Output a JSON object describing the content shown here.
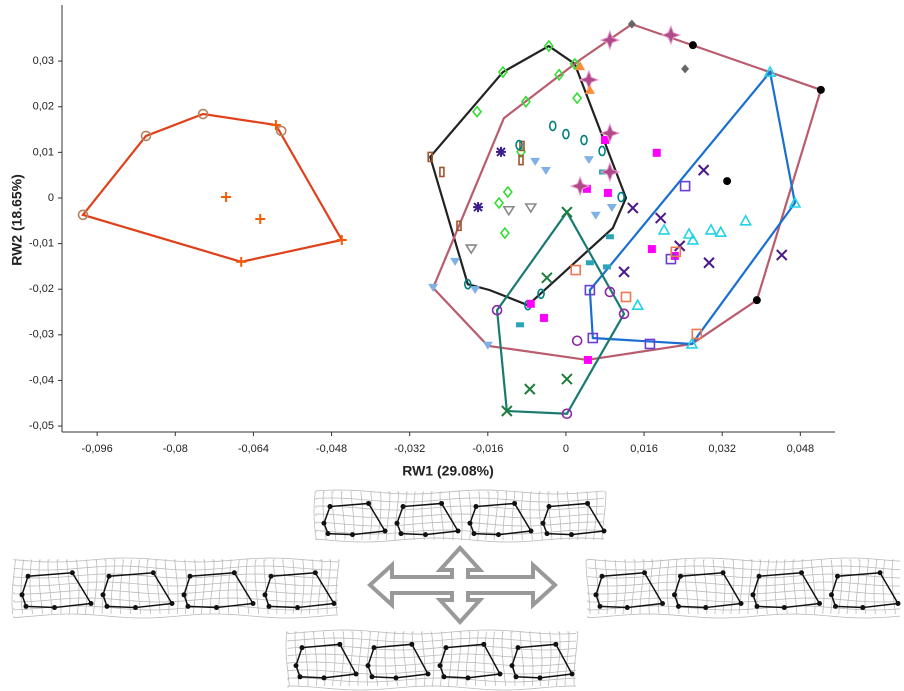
{
  "chart_data": {
    "type": "scatter",
    "x_label": "RW1 (29.08%)",
    "y_label": "RW2 (18.65%)",
    "xlim": [
      -0.1032,
      0.0551
    ],
    "ylim": [
      -0.0513,
      0.0423
    ],
    "xticks": [
      {
        "value": -0.096,
        "label": "-0,096"
      },
      {
        "value": -0.08,
        "label": "-0,08"
      },
      {
        "value": -0.064,
        "label": "-0,064"
      },
      {
        "value": -0.048,
        "label": "-0,048"
      },
      {
        "value": -0.032,
        "label": "-0,032"
      },
      {
        "value": -0.016,
        "label": "-0,016"
      },
      0,
      {
        "value": 0.016,
        "label": "0,016"
      },
      {
        "value": 0.032,
        "label": "0,032"
      },
      {
        "value": 0.048,
        "label": "0,048"
      }
    ],
    "yticks": [
      {
        "value": 0.03,
        "label": "0,03"
      },
      {
        "value": 0.02,
        "label": "0,02"
      },
      {
        "value": 0.01,
        "label": "0,01"
      },
      0,
      {
        "value": -0.01,
        "label": "-0,01"
      },
      {
        "value": -0.02,
        "label": "-0,02"
      },
      {
        "value": -0.03,
        "label": "-0,03"
      },
      {
        "value": -0.04,
        "label": "-0,04"
      },
      {
        "value": -0.05,
        "label": "-0,05"
      }
    ],
    "hulls": [
      {
        "color": "#e0401a",
        "x": [
          -0.0989,
          -0.086,
          -0.0743,
          -0.0594,
          -0.0459,
          -0.0665
        ],
        "y": [
          -0.0037,
          0.0136,
          0.0184,
          0.016,
          -0.0092,
          -0.014
        ]
      },
      {
        "color": "#222222",
        "x": [
          -0.0278,
          -0.0129,
          -0.0035,
          0.0018,
          0.0123,
          0.0096,
          -0.0078,
          -0.0156,
          -0.0201
        ],
        "y": [
          0.009,
          0.0276,
          0.0333,
          0.0294,
          0,
          -0.0066,
          -0.0235,
          -0.0202,
          -0.0189
        ]
      },
      {
        "color": "#b85c6e",
        "x": [
          -0.0272,
          -0.016,
          0.0043,
          0.0258,
          0.0391,
          0.0522,
          0.0135,
          0.0029,
          -0.0127
        ],
        "y": [
          -0.0197,
          -0.0324,
          -0.0355,
          -0.032,
          -0.0224,
          0.0237,
          0.0381,
          0.0303,
          0.0175
        ]
      },
      {
        "color": "#1a6fd0",
        "x": [
          0.0049,
          0.0418,
          0.0469,
          0.0258,
          0.0055
        ],
        "y": [
          -0.0202,
          0.0276,
          -0.0011,
          -0.032,
          -0.0307
        ]
      },
      {
        "color": "#1a7a70",
        "x": [
          -0.0141,
          0.0002,
          0.0119,
          0.0002,
          -0.0121
        ],
        "y": [
          -0.0246,
          -0.0031,
          -0.0254,
          -0.0473,
          -0.0467
        ]
      }
    ],
    "series": [
      {
        "marker": "circle-open",
        "color": "#b5835f",
        "x": [
          -0.0989,
          -0.086,
          -0.0743,
          -0.0583
        ],
        "y": [
          -0.0037,
          0.0136,
          0.0184,
          0.0147
        ]
      },
      {
        "marker": "plus",
        "color": "#f25c05",
        "x": [
          -0.0594,
          -0.0459,
          -0.0665,
          -0.0696,
          -0.0626
        ],
        "y": [
          0.016,
          -0.0092,
          -0.014,
          0.0002,
          -0.0046
        ]
      },
      {
        "marker": "diamond-open",
        "color": "#33dd33",
        "x": [
          -0.0129,
          -0.0035,
          0.0018,
          -0.0014,
          -0.0082,
          0.0023,
          -0.0182,
          -0.0119,
          -0.0137,
          -0.0125,
          -0.0092
        ],
        "y": [
          0.0276,
          0.0333,
          0.0294,
          0.027,
          0.0211,
          0.0219,
          0.0189,
          0.0013,
          -0.0011,
          -0.0077,
          0.0101
        ]
      },
      {
        "marker": "rect-open",
        "color": "#a0522d",
        "x": [
          -0.0278,
          -0.0254,
          -0.0219,
          -0.0092,
          -0.009
        ],
        "y": [
          0.009,
          0.0057,
          -0.0061,
          0.0083,
          0.0114
        ]
      },
      {
        "marker": "tri-down",
        "color": "#7fb0e6",
        "x": [
          -0.0272,
          -0.0186,
          -0.016,
          -0.0063,
          0.0047,
          0.0061,
          0.0094,
          -0.0041,
          -0.0227
        ],
        "y": [
          -0.0197,
          -0.0202,
          -0.0324,
          0.0079,
          0.0083,
          -0.0039,
          -0.0022,
          0.0059,
          -0.014
        ]
      },
      {
        "marker": "tri-down-open",
        "color": "#888888",
        "x": [
          -0.0117,
          -0.0072,
          -0.0194
        ],
        "y": [
          -0.0028,
          -0.0022,
          -0.0112
        ]
      },
      {
        "marker": "oval-open",
        "color": "#008080",
        "x": [
          -0.0201,
          -0.0096,
          -0.0027,
          0,
          0.0037,
          0.0074,
          0.0113,
          -0.0051,
          -0.0078
        ],
        "y": [
          -0.0189,
          0.0116,
          0.0158,
          0.014,
          0.0127,
          0.0103,
          0.0002,
          -0.021,
          -0.0235
        ]
      },
      {
        "marker": "asterisk",
        "color": "#3b1f8c",
        "x": [
          -0.0133,
          -0.018
        ],
        "y": [
          0.0101,
          -0.002
        ]
      },
      {
        "marker": "circle-open",
        "color": "#8e24aa",
        "x": [
          -0.0141,
          0.009,
          0.0002,
          0.0023,
          0.0119
        ],
        "y": [
          -0.0246,
          -0.0206,
          -0.0473,
          -0.0313,
          -0.0254
        ]
      },
      {
        "marker": "rect-small",
        "color": "#2aa5b5",
        "x": [
          -0.0094,
          0.0076,
          0.009,
          0.0084,
          0.0049
        ],
        "y": [
          -0.0278,
          0.0057,
          -0.0085,
          -0.0151,
          -0.0142
        ]
      },
      {
        "marker": "x",
        "color": "#1e7d3c",
        "x": [
          0.0002,
          -0.0039,
          -0.0074,
          0.0002,
          -0.0121
        ],
        "y": [
          -0.0031,
          -0.0175,
          -0.0419,
          -0.0397,
          -0.0467
        ]
      },
      {
        "marker": "square",
        "color": "#ff00ff",
        "x": [
          0.0186,
          0.0043,
          0.0086,
          0.008,
          -0.0072,
          -0.0045,
          0.0045,
          0.0176,
          0.0223
        ],
        "y": [
          0.0099,
          0.002,
          0.0011,
          0.0127,
          -0.0232,
          -0.0263,
          -0.0355,
          -0.0112,
          -0.0127
        ]
      },
      {
        "marker": "square-open",
        "color": "#6a3ed6",
        "x": [
          0.0244,
          0.0049,
          0.0055,
          0.0172,
          0.0215
        ],
        "y": [
          0.0026,
          -0.0202,
          -0.0307,
          -0.032,
          -0.0134
        ]
      },
      {
        "marker": "x",
        "color": "#4a1a8a",
        "x": [
          0.0282,
          0.0137,
          0.0194,
          0.0233,
          0.0293,
          0.0119,
          0.0442
        ],
        "y": [
          0.0061,
          -0.0022,
          -0.0044,
          -0.0105,
          -0.0142,
          -0.0162,
          -0.0125
        ]
      },
      {
        "marker": "tri-open",
        "color": "#22d3e6",
        "x": [
          0.0201,
          0.0252,
          0.026,
          0.0297,
          0.0317,
          0.0368,
          0.0147,
          0.0258,
          0.0418,
          0.0469
        ],
        "y": [
          -0.007,
          -0.0079,
          -0.0092,
          -0.007,
          -0.0075,
          -0.005,
          -0.0235,
          -0.032,
          0.0276,
          -0.0011
        ]
      },
      {
        "marker": "square-open",
        "color": "#f07850",
        "x": [
          0.002,
          0.0123,
          0.0225,
          0.0268
        ],
        "y": [
          -0.0158,
          -0.0217,
          -0.0118,
          -0.0298
        ]
      },
      {
        "marker": "circle",
        "color": "#000000",
        "x": [
          0.026,
          0.0522,
          0.033,
          0.0391
        ],
        "y": [
          0.0335,
          0.0237,
          0.0037,
          -0.0224
        ]
      },
      {
        "marker": "diamond",
        "color": "#666666",
        "x": [
          0.0135,
          0.0211,
          0.0244
        ],
        "y": [
          0.0381,
          0.0357,
          0.0283
        ]
      },
      {
        "marker": "star",
        "color": "#b04a8a",
        "x": [
          0.0215,
          0.009,
          0.0047,
          0.009,
          0.0029,
          0.009
        ],
        "y": [
          0.0357,
          0.0346,
          0.0259,
          0.0142,
          0.0026,
          0.0057
        ]
      },
      {
        "marker": "tri",
        "color": "#ff8c3a",
        "x": [
          0.0029,
          0.0049
        ],
        "y": [
          0.0289,
          0.0237
        ]
      }
    ]
  }
}
